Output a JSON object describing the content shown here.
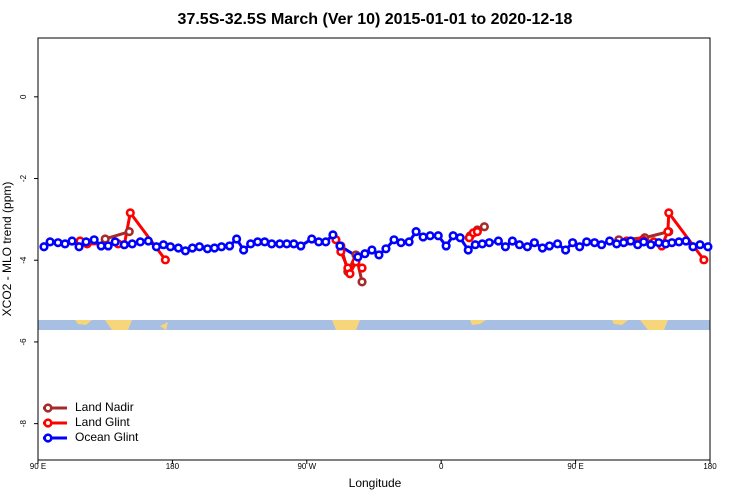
{
  "chart_data": {
    "type": "line",
    "title": "37.5S-32.5S March (Ver 10)   2015-01-01 to 2020-12-18",
    "x_label": "Longitude",
    "y_label": "XCO2 - MLO trend (ppm)",
    "xlim": [
      90,
      540
    ],
    "xticks": [
      {
        "value": 90,
        "label": "90 E"
      },
      180,
      {
        "value": 270,
        "label": "90 W"
      },
      {
        "value": 360,
        "label": "0"
      },
      {
        "value": 450,
        "label": "90 E"
      },
      {
        "value": 540,
        "label": "180"
      }
    ],
    "ylim": [
      -8.89,
      1.44
    ],
    "yticks": [
      0,
      -2,
      -4,
      -6,
      -8
    ],
    "legend": "bottom-left",
    "series": [
      {
        "name": "Land Nadir",
        "color": "#a52a2a",
        "x": [
          135.0,
          151.1,
          null,
          292.8,
          297.5,
          302.9,
          307.0,
          null,
          379.5,
          384.2,
          388.9,
          null,
          478.9,
          496.3,
          512.4
        ],
        "values": [
          -3.48,
          -3.3,
          null,
          -3.65,
          -4.28,
          -3.87,
          -4.53,
          null,
          -3.4,
          -3.26,
          -3.18,
          null,
          -3.5,
          -3.45,
          -3.3
        ]
      },
      {
        "name": "Land Glint",
        "color": "#ff0000",
        "x": [
          118.2,
          122.9,
          143.7,
          147.8,
          151.8,
          175.3,
          null,
          289.5,
          292.8,
          297.5,
          298.9,
          302.9,
          307.0,
          null,
          378.8,
          381.5,
          384.2,
          null,
          484.2,
          495.0,
          502.4,
          507.7,
          511.8,
          512.4,
          535.9
        ],
        "values": [
          -3.53,
          -3.6,
          -3.6,
          -3.62,
          -2.84,
          -3.99,
          null,
          -3.5,
          -3.79,
          -4.19,
          -4.33,
          -4.04,
          -4.19,
          null,
          -3.45,
          -3.33,
          -3.3,
          null,
          -3.53,
          -3.5,
          -3.55,
          -3.65,
          -3.3,
          -2.84,
          -3.99
        ]
      },
      {
        "name": "Ocean Glint",
        "color": "#0000ff",
        "x": [
          94.0,
          98.1,
          103.4,
          108.1,
          112.8,
          117.5,
          122.2,
          127.6,
          132.3,
          137.0,
          141.7,
          147.8,
          153.1,
          158.5,
          163.9,
          169.3,
          174.0,
          178.7,
          184.0,
          188.7,
          193.4,
          198.1,
          203.5,
          208.2,
          212.9,
          218.3,
          223.0,
          227.7,
          232.4,
          237.1,
          241.8,
          246.5,
          251.9,
          256.6,
          261.3,
          266.0,
          273.3,
          278.0,
          282.7,
          287.5,
          292.2,
          304.2,
          308.9,
          313.6,
          318.3,
          323.0,
          328.4,
          333.1,
          338.5,
          343.2,
          347.9,
          352.6,
          358.0,
          363.3,
          368.0,
          372.7,
          378.1,
          382.8,
          387.5,
          392.2,
          398.3,
          403.0,
          407.7,
          412.4,
          417.7,
          422.4,
          427.8,
          432.5,
          437.9,
          443.3,
          448.0,
          452.7,
          457.4,
          462.7,
          467.4,
          472.8,
          477.5,
          482.2,
          486.9,
          491.6,
          495.6,
          500.4,
          505.7,
          510.4,
          514.5,
          519.2,
          523.9,
          528.6,
          533.3,
          538.6
        ],
        "values": [
          -3.67,
          -3.55,
          -3.57,
          -3.6,
          -3.53,
          -3.67,
          -3.55,
          -3.5,
          -3.65,
          -3.65,
          -3.55,
          -3.62,
          -3.6,
          -3.55,
          -3.53,
          -3.67,
          -3.62,
          -3.67,
          -3.7,
          -3.77,
          -3.7,
          -3.67,
          -3.72,
          -3.7,
          -3.67,
          -3.65,
          -3.48,
          -3.75,
          -3.6,
          -3.55,
          -3.55,
          -3.6,
          -3.6,
          -3.6,
          -3.6,
          -3.65,
          -3.48,
          -3.55,
          -3.55,
          -3.38,
          -3.65,
          -3.92,
          -3.84,
          -3.75,
          -3.87,
          -3.72,
          -3.5,
          -3.57,
          -3.55,
          -3.3,
          -3.43,
          -3.4,
          -3.4,
          -3.65,
          -3.4,
          -3.45,
          -3.75,
          -3.62,
          -3.6,
          -3.57,
          -3.53,
          -3.67,
          -3.53,
          -3.62,
          -3.67,
          -3.57,
          -3.7,
          -3.65,
          -3.6,
          -3.75,
          -3.57,
          -3.67,
          -3.55,
          -3.57,
          -3.62,
          -3.53,
          -3.6,
          -3.57,
          -3.53,
          -3.62,
          -3.55,
          -3.62,
          -3.57,
          -3.6,
          -3.57,
          -3.55,
          -3.53,
          -3.67,
          -3.62,
          -3.67
        ]
      }
    ]
  }
}
